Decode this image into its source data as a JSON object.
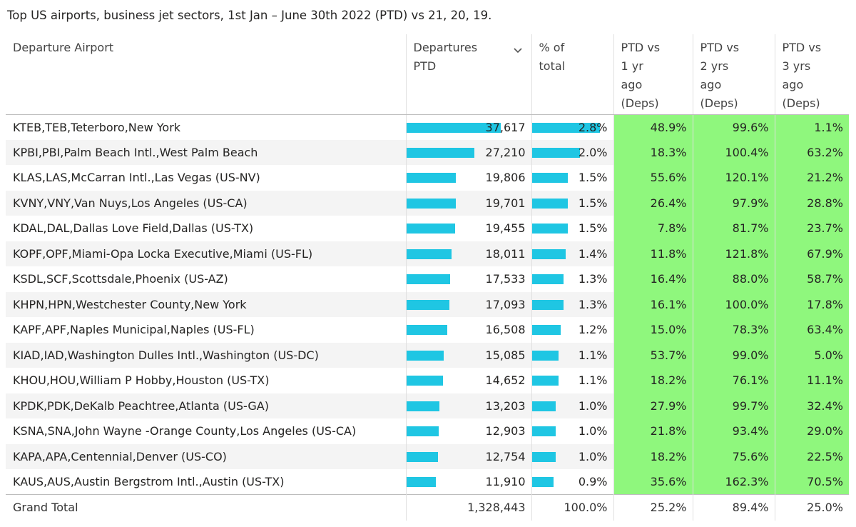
{
  "title": "Top US airports, business jet sectors, 1st Jan – June 30th 2022 (PTD) vs 21, 20, 19.",
  "colors": {
    "bar": "#1fc6e3",
    "highlight": "#8ff77d"
  },
  "headers": {
    "airport": "Departure Airport",
    "deps_line1": "Departures",
    "deps_line2": "PTD",
    "pct_line1": "% of",
    "pct_line2": "total",
    "v1_line1": "PTD vs",
    "v1_line2": "1 yr",
    "v1_line3": "ago",
    "v1_line4": "(Deps)",
    "v2_line1": "PTD vs",
    "v2_line2": "2 yrs",
    "v2_line3": "ago",
    "v2_line4": "(Deps)",
    "v3_line1": "PTD vs",
    "v3_line2": "3 yrs",
    "v3_line3": "ago",
    "v3_line4": "(Deps)",
    "sort_icon": "chevron-down-icon"
  },
  "rows": [
    {
      "airport": "KTEB,TEB,Teterboro,New York",
      "deps": "37,617",
      "deps_value": 37617,
      "pct": "2.8%",
      "pct_value": 2.8,
      "v1": "48.9%",
      "v2": "99.6%",
      "v3": "1.1%"
    },
    {
      "airport": "KPBI,PBI,Palm Beach Intl.,West Palm Beach",
      "deps": "27,210",
      "deps_value": 27210,
      "pct": "2.0%",
      "pct_value": 2.0,
      "v1": "18.3%",
      "v2": "100.4%",
      "v3": "63.2%"
    },
    {
      "airport": "KLAS,LAS,McCarran Intl.,Las Vegas (US-NV)",
      "deps": "19,806",
      "deps_value": 19806,
      "pct": "1.5%",
      "pct_value": 1.5,
      "v1": "55.6%",
      "v2": "120.1%",
      "v3": "21.2%"
    },
    {
      "airport": "KVNY,VNY,Van Nuys,Los Angeles (US-CA)",
      "deps": "19,701",
      "deps_value": 19701,
      "pct": "1.5%",
      "pct_value": 1.5,
      "v1": "26.4%",
      "v2": "97.9%",
      "v3": "28.8%"
    },
    {
      "airport": "KDAL,DAL,Dallas Love Field,Dallas (US-TX)",
      "deps": "19,455",
      "deps_value": 19455,
      "pct": "1.5%",
      "pct_value": 1.5,
      "v1": "7.8%",
      "v2": "81.7%",
      "v3": "23.7%"
    },
    {
      "airport": "KOPF,OPF,Miami-Opa Locka Executive,Miami (US-FL)",
      "deps": "18,011",
      "deps_value": 18011,
      "pct": "1.4%",
      "pct_value": 1.4,
      "v1": "11.8%",
      "v2": "121.8%",
      "v3": "67.9%"
    },
    {
      "airport": "KSDL,SCF,Scottsdale,Phoenix (US-AZ)",
      "deps": "17,533",
      "deps_value": 17533,
      "pct": "1.3%",
      "pct_value": 1.3,
      "v1": "16.4%",
      "v2": "88.0%",
      "v3": "58.7%"
    },
    {
      "airport": "KHPN,HPN,Westchester County,New York",
      "deps": "17,093",
      "deps_value": 17093,
      "pct": "1.3%",
      "pct_value": 1.3,
      "v1": "16.1%",
      "v2": "100.0%",
      "v3": "17.8%"
    },
    {
      "airport": "KAPF,APF,Naples Municipal,Naples (US-FL)",
      "deps": "16,508",
      "deps_value": 16508,
      "pct": "1.2%",
      "pct_value": 1.2,
      "v1": "15.0%",
      "v2": "78.3%",
      "v3": "63.4%"
    },
    {
      "airport": "KIAD,IAD,Washington Dulles Intl.,Washington (US-DC)",
      "deps": "15,085",
      "deps_value": 15085,
      "pct": "1.1%",
      "pct_value": 1.1,
      "v1": "53.7%",
      "v2": "99.0%",
      "v3": "5.0%"
    },
    {
      "airport": "KHOU,HOU,William P Hobby,Houston (US-TX)",
      "deps": "14,652",
      "deps_value": 14652,
      "pct": "1.1%",
      "pct_value": 1.1,
      "v1": "18.2%",
      "v2": "76.1%",
      "v3": "11.1%"
    },
    {
      "airport": "KPDK,PDK,DeKalb Peachtree,Atlanta (US-GA)",
      "deps": "13,203",
      "deps_value": 13203,
      "pct": "1.0%",
      "pct_value": 1.0,
      "v1": "27.9%",
      "v2": "99.7%",
      "v3": "32.4%"
    },
    {
      "airport": "KSNA,SNA,John Wayne -Orange County,Los Angeles (US-CA)",
      "deps": "12,903",
      "deps_value": 12903,
      "pct": "1.0%",
      "pct_value": 1.0,
      "v1": "21.8%",
      "v2": "93.4%",
      "v3": "29.0%"
    },
    {
      "airport": "KAPA,APA,Centennial,Denver (US-CO)",
      "deps": "12,754",
      "deps_value": 12754,
      "pct": "1.0%",
      "pct_value": 1.0,
      "v1": "18.2%",
      "v2": "75.6%",
      "v3": "22.5%"
    },
    {
      "airport": "KAUS,AUS,Austin Bergstrom Intl.,Austin (US-TX)",
      "deps": "11,910",
      "deps_value": 11910,
      "pct": "0.9%",
      "pct_value": 0.9,
      "v1": "35.6%",
      "v2": "162.3%",
      "v3": "70.5%"
    }
  ],
  "total": {
    "label": "Grand Total",
    "deps": "1,328,443",
    "pct": "100.0%",
    "v1": "25.2%",
    "v2": "89.4%",
    "v3": "25.0%"
  }
}
